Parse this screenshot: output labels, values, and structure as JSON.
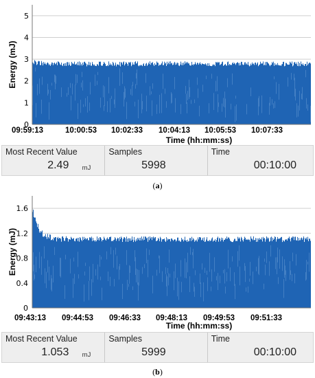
{
  "panels": [
    {
      "caption_letter": "a",
      "chart_data": {
        "type": "bar",
        "ylabel": "Energy (mJ)",
        "xlabel": "Time (hh:mm:ss)",
        "ylim": [
          0,
          5.5
        ],
        "y_ticks": [
          "0",
          "1",
          "2",
          "3",
          "4",
          "5"
        ],
        "x_tick_labels": [
          "09:59:13",
          "10:00:53",
          "10:02:33",
          "10:04:13",
          "10:05:53",
          "10:07:33"
        ],
        "grid": true,
        "series": [
          {
            "values_description_free": true,
            "start_level": 3.0,
            "plateau_level": 2.9,
            "min_level": 0,
            "color": "#1f64b4"
          }
        ]
      },
      "stats": {
        "most_recent_label": "Most Recent Value",
        "most_recent_value": "2.49",
        "most_recent_unit": "mJ",
        "samples_label": "Samples",
        "samples_value": "5998",
        "time_label": "Time",
        "time_value": "00:10:00"
      }
    },
    {
      "caption_letter": "b",
      "chart_data": {
        "type": "bar",
        "ylabel": "Energy (mJ)",
        "xlabel": "Time (hh:mm:ss)",
        "ylim": [
          0,
          1.8
        ],
        "y_ticks": [
          "0",
          "0.4",
          "0.8",
          "1.2",
          "1.6"
        ],
        "x_tick_labels": [
          "09:43:13",
          "09:44:53",
          "09:46:33",
          "09:48:13",
          "09:49:53",
          "09:51:33"
        ],
        "grid": true,
        "series": [
          {
            "start_level": 1.65,
            "plateau_level": 1.15,
            "min_level": 0,
            "color": "#1f64b4"
          }
        ]
      },
      "stats": {
        "most_recent_label": "Most Recent Value",
        "most_recent_value": "1.053",
        "most_recent_unit": "mJ",
        "samples_label": "Samples",
        "samples_value": "5999",
        "time_label": "Time",
        "time_value": "00:10:00"
      }
    }
  ]
}
